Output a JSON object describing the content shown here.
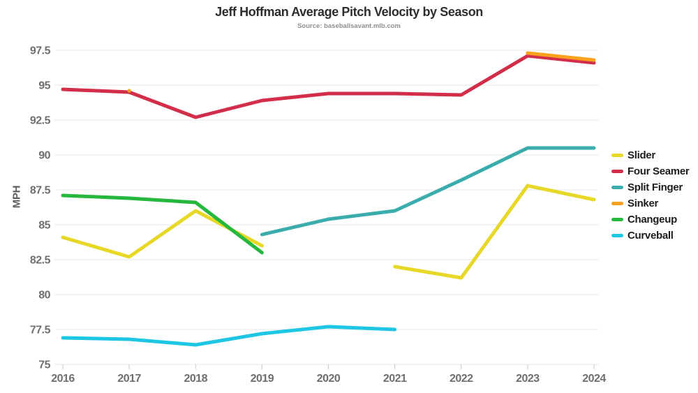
{
  "chart_data": {
    "type": "line",
    "title": "Jeff Hoffman Average Pitch Velocity by Season",
    "subtitle": "Source: baseballsavant.mlb.com",
    "xlabel": "",
    "ylabel": "MPH",
    "x_categories": [
      "2016",
      "2017",
      "2018",
      "2019",
      "2020",
      "2021",
      "2022",
      "2023",
      "2024"
    ],
    "ylim": [
      75,
      97.5
    ],
    "ytick_step": 2.5,
    "grid": true,
    "legend_position": "right",
    "line_width": 5,
    "series": [
      {
        "name": "Slider",
        "color": "#e7d828",
        "values": [
          84.1,
          82.7,
          86.0,
          83.5,
          null,
          82.0,
          81.2,
          87.8,
          86.8
        ]
      },
      {
        "name": "Four Seamer",
        "color": "#d22d49",
        "values": [
          94.7,
          94.5,
          92.7,
          93.9,
          94.4,
          94.4,
          94.3,
          97.1,
          96.6
        ]
      },
      {
        "name": "Split Finger",
        "color": "#3bacac",
        "values": [
          null,
          null,
          null,
          84.3,
          85.4,
          86.0,
          88.2,
          90.5,
          90.5
        ]
      },
      {
        "name": "Sinker",
        "color": "#f9a01c",
        "values": [
          null,
          94.6,
          null,
          null,
          null,
          null,
          null,
          97.3,
          96.8
        ]
      },
      {
        "name": "Changeup",
        "color": "#25b73e",
        "values": [
          87.1,
          86.9,
          86.6,
          83.0,
          null,
          null,
          null,
          null,
          null
        ]
      },
      {
        "name": "Curveball",
        "color": "#1fc6e4",
        "values": [
          76.9,
          76.8,
          76.4,
          77.2,
          77.7,
          77.5,
          null,
          null,
          null
        ]
      }
    ]
  },
  "colors": {
    "background": "#ffffff",
    "gridline": "#e7e7e7",
    "axis_tick": "#c9c9c9",
    "tick_label": "#6f6f6f",
    "title": "#2d2d2d",
    "subtitle": "#8f8f8f",
    "legend_text": "#1d1d1d"
  }
}
